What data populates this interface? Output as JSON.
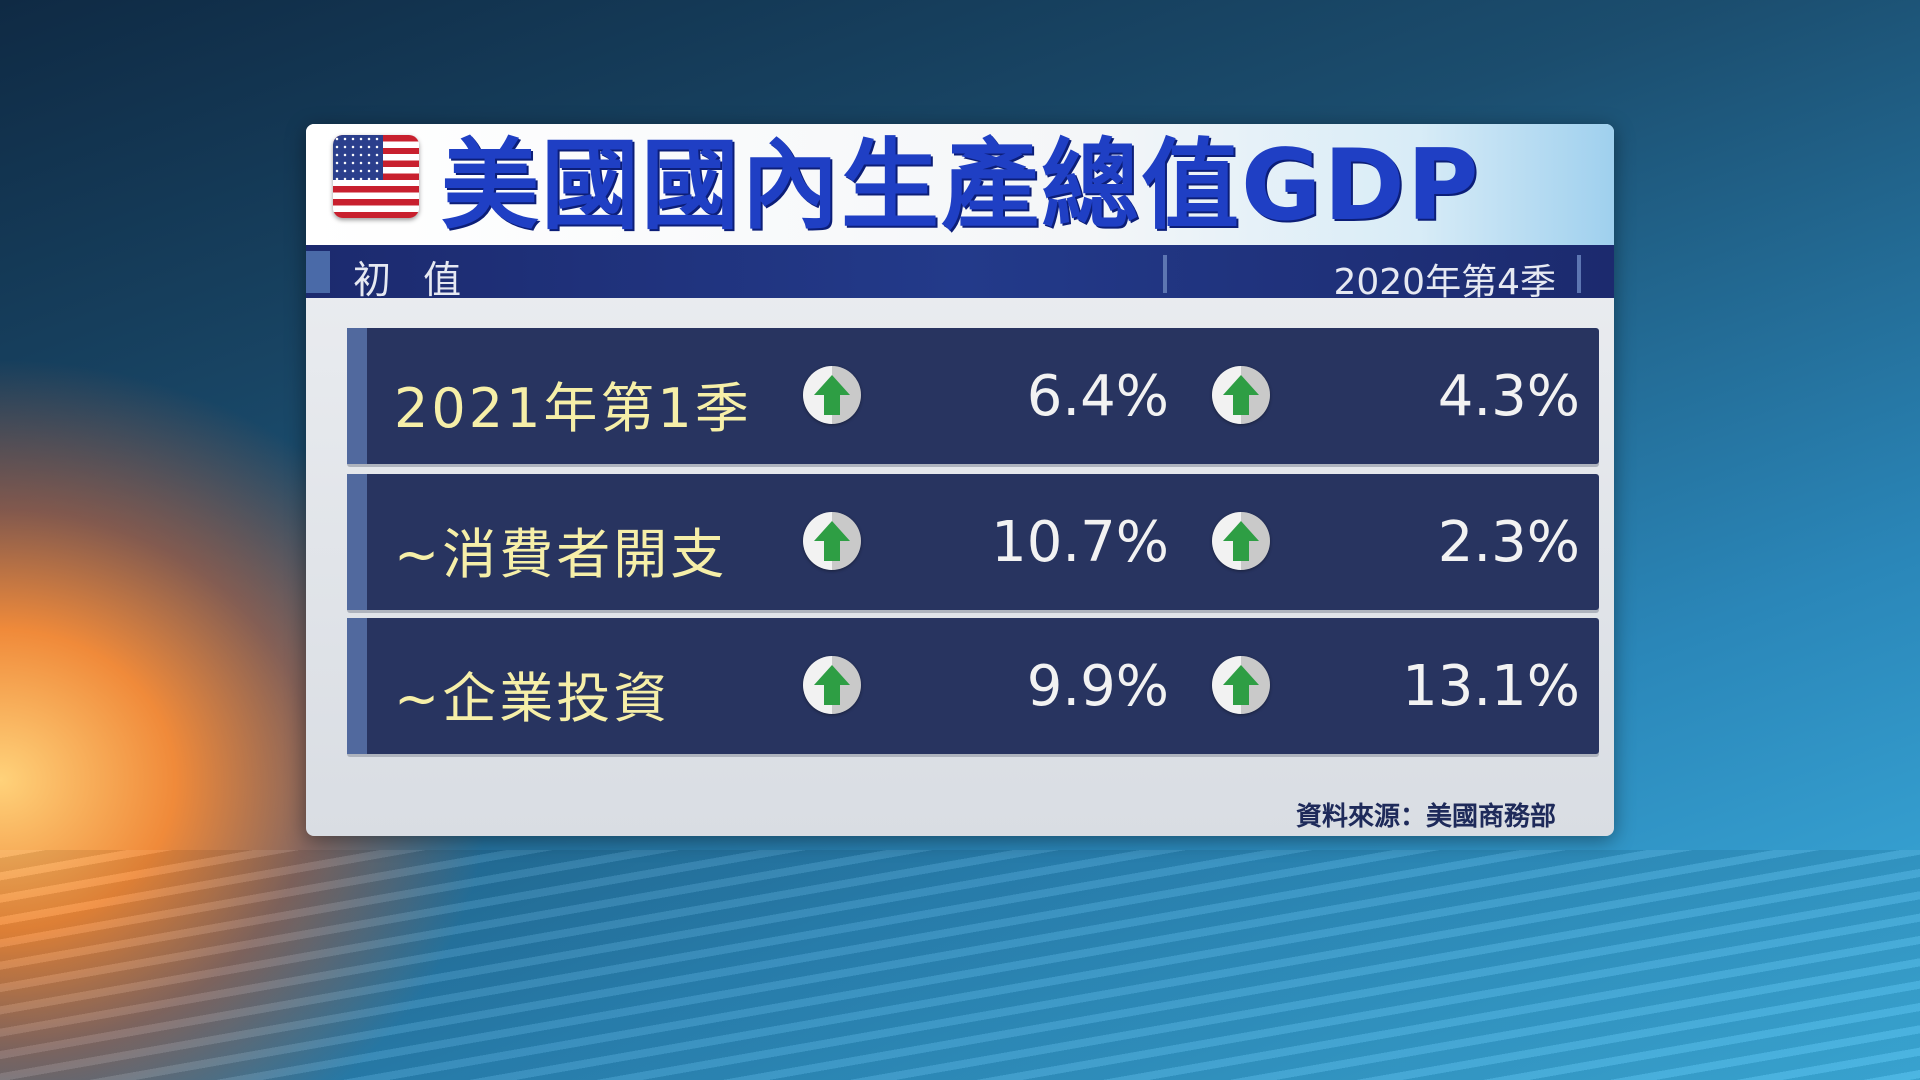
{
  "title": "美國國內生產總值GDP",
  "flag_icon": "us-flag-icon",
  "subheader": {
    "left": "初 值",
    "right": "2020年第4季"
  },
  "rows": [
    {
      "label": "2021年第1季",
      "value1": "6.4%",
      "trend1": "up",
      "value2": "4.3%",
      "trend2": "up"
    },
    {
      "label": "~消費者開支",
      "value1": "10.7%",
      "trend1": "up",
      "value2": "2.3%",
      "trend2": "up"
    },
    {
      "label": "~企業投資",
      "value1": "9.9%",
      "trend1": "up",
      "value2": "13.1%",
      "trend2": "up"
    }
  ],
  "source": "資料來源：美國商務部",
  "colors": {
    "title": "#1f3fc4",
    "row_bg": "#283460",
    "label": "#f6efa8",
    "arrow": "#2e9e44"
  }
}
